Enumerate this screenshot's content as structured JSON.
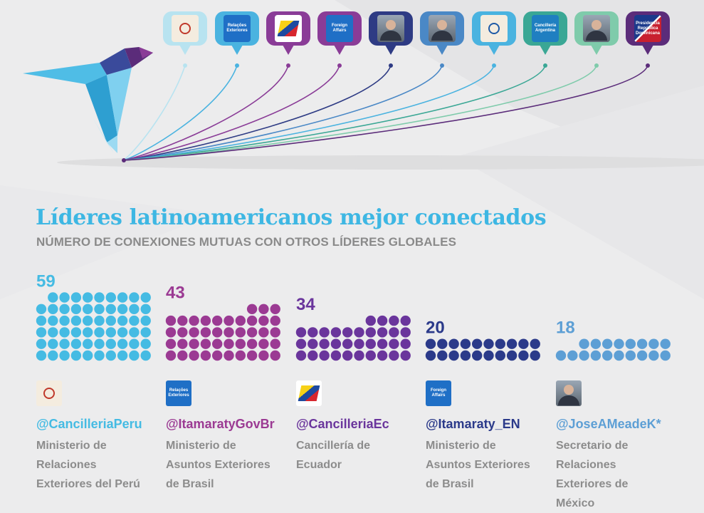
{
  "page": {
    "title": "Líderes latinoamericanos mejor conectados",
    "subtitle": "NÚMERO DE CONEXIONES MUTUAS CON OTROS LÍDERES GLOBALES"
  },
  "top_avatars": [
    {
      "icon": "peru-crest-icon",
      "color": "#b8e3f0"
    },
    {
      "icon": "relacoes-exteriores-logo-icon",
      "color": "#4ab3e0",
      "label": "Relações Exteriores"
    },
    {
      "icon": "ecuador-flag-logo-icon",
      "color": "#8a3c97"
    },
    {
      "icon": "foreign-affairs-logo-icon",
      "color": "#8a3c97",
      "label": "Foreign Affairs"
    },
    {
      "icon": "leader-portrait-icon",
      "color": "#2e3b84"
    },
    {
      "icon": "leader-portrait-icon",
      "color": "#4a88c6"
    },
    {
      "icon": "el-salvador-crest-icon",
      "color": "#4ab3e0"
    },
    {
      "icon": "cancilleria-argentina-logo-icon",
      "color": "#3aa795",
      "label": "Cancillería Argentina"
    },
    {
      "icon": "leader-portrait-icon",
      "color": "#7fcbab"
    },
    {
      "icon": "presidencia-republica-dominicana-logo-icon",
      "color": "#5b2c7a",
      "label": "Presidencia República Dominicana"
    }
  ],
  "chart_data": {
    "type": "bar",
    "title": "Líderes latinoamericanos mejor conectados",
    "subtitle": "NÚMERO DE CONEXIONES MUTUAS CON OTROS LÍDERES GLOBALES",
    "categories": [
      "@CancilleriaPeru",
      "@ItamaratyGovBr",
      "@CancilleriaEc",
      "@Itamaraty_EN",
      "@JoseAMeadeK*"
    ],
    "values": [
      59,
      43,
      34,
      20,
      18
    ],
    "value_labels": [
      "59",
      "43",
      "34",
      "20",
      "18"
    ],
    "unit": "one dot per mutual connection",
    "colors": [
      "#45bbe3",
      "#9b3a93",
      "#6a359c",
      "#2b3a8a",
      "#5d9fd5"
    ]
  },
  "leaders": [
    {
      "handle": "@CancilleriaPeru",
      "desc": "Ministerio de\nRelaciones\nExteriores del Perú",
      "icon": "peru-crest-icon",
      "color": "#45bbe3"
    },
    {
      "handle": "@ItamaratyGovBr",
      "desc": "Ministerio de\nAsuntos Exteriores\nde Brasil",
      "icon": "relacoes-exteriores-logo-icon",
      "color": "#9b3a93",
      "logo_text": "Relações Exteriores"
    },
    {
      "handle": "@CancilleriaEc",
      "desc": "Cancillería de\nEcuador",
      "icon": "ecuador-flag-logo-icon",
      "color": "#6a359c"
    },
    {
      "handle": "@Itamaraty_EN",
      "desc": "Ministerio de\nAsuntos Exteriores\nde Brasil",
      "icon": "foreign-affairs-logo-icon",
      "color": "#2b3a8a",
      "logo_text": "Foreign Affairs"
    },
    {
      "handle": "@JoseAMeadeK*",
      "desc": "Secretario de\nRelaciones\nExteriores de\nMéxico",
      "icon": "leader-portrait-icon",
      "color": "#5d9fd5"
    }
  ],
  "colors": {
    "background": "#ececed",
    "title": "#3eb7e3",
    "subtitle": "#8a8a8a",
    "description": "#8c8c8c",
    "bird_main": "#45b6e2",
    "bird_dark": "#5b2c7a"
  }
}
